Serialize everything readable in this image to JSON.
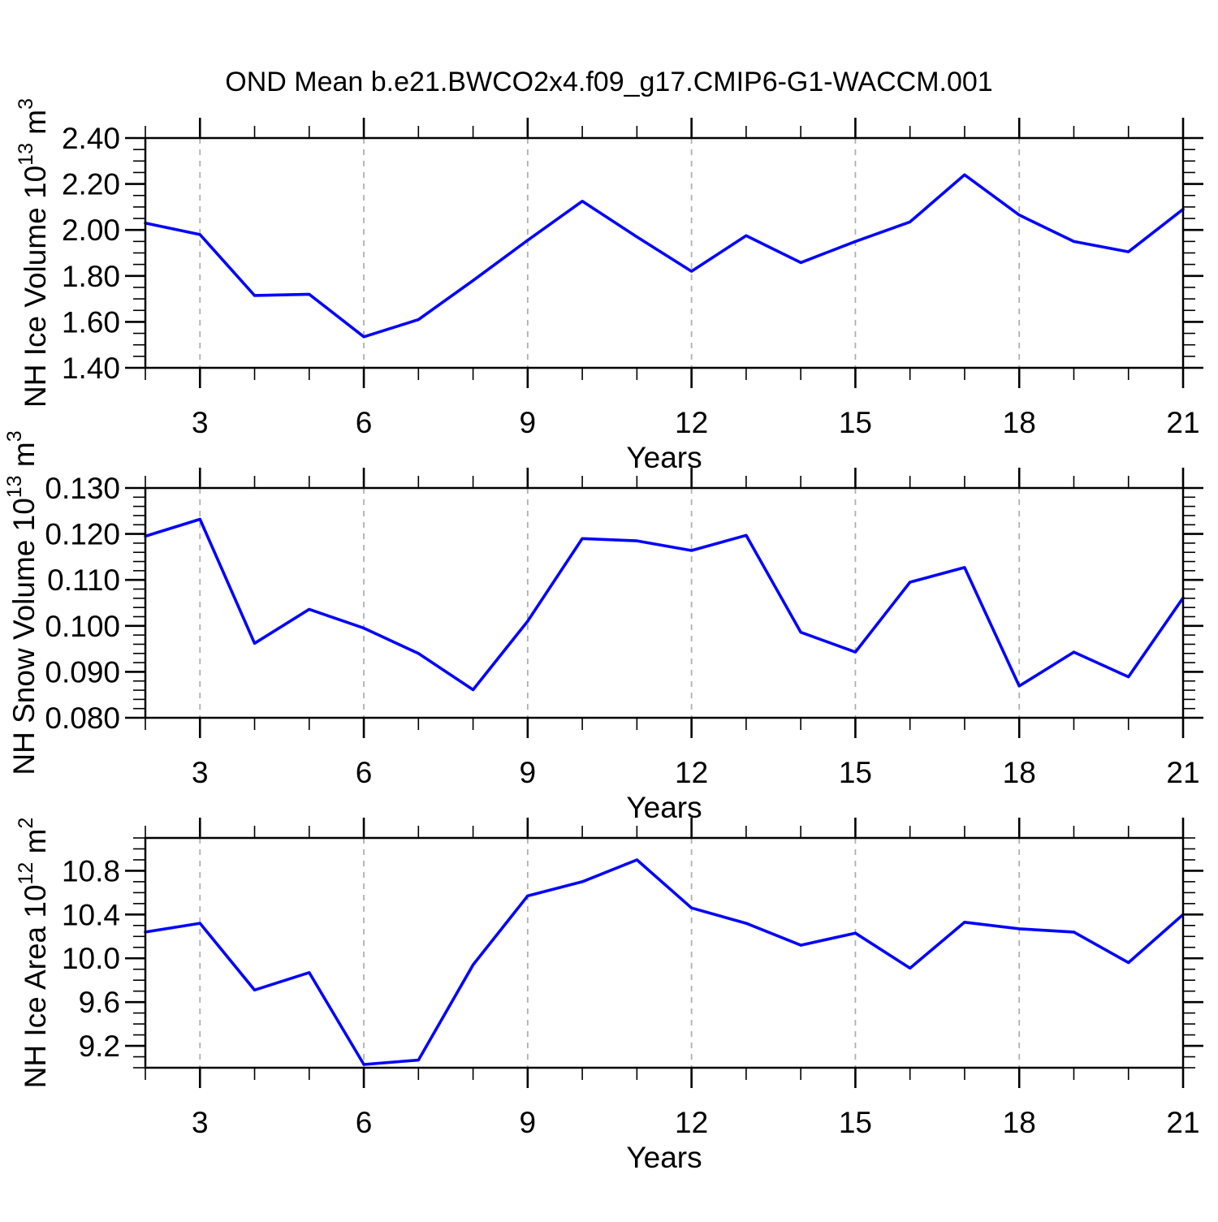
{
  "title": "OND Mean b.e21.BWCO2x4.f09_g17.CMIP6-G1-WACCM.001",
  "colors": {
    "line": "#0000ff",
    "grid": "#b0b0b0",
    "axis": "#000000",
    "background": "#ffffff"
  },
  "x_axis": {
    "label": "Years",
    "min": 2,
    "max": 21,
    "major_ticks": [
      3,
      6,
      9,
      12,
      15,
      18,
      21
    ],
    "minor_step": 1,
    "gridline_years": [
      3,
      6,
      9,
      12,
      15,
      18
    ]
  },
  "chart_data": [
    {
      "type": "line",
      "name": "nh-ice-volume",
      "ylabel": "NH Ice Volume 10^13 m^3",
      "ylabel_parts": [
        {
          "t": "NH Ice Volume 10"
        },
        {
          "t": "13",
          "sup": true
        },
        {
          "t": " m"
        },
        {
          "t": "3",
          "sup": true
        }
      ],
      "ylim": [
        1.4,
        2.4
      ],
      "ytick_values": [
        1.4,
        1.6,
        1.8,
        2.0,
        2.2,
        2.4
      ],
      "ytick_labels": [
        "1.40",
        "1.60",
        "1.80",
        "2.00",
        "2.20",
        "2.40"
      ],
      "y_minor_step": 0.05,
      "x": [
        2,
        3,
        4,
        5,
        6,
        7,
        8,
        9,
        10,
        11,
        12,
        13,
        14,
        15,
        16,
        17,
        18,
        19,
        20,
        21
      ],
      "values": [
        2.03,
        1.98,
        1.715,
        1.72,
        1.535,
        1.61,
        1.78,
        1.955,
        2.125,
        1.97,
        1.82,
        1.975,
        1.858,
        1.95,
        2.035,
        2.24,
        2.065,
        1.95,
        1.905,
        2.09
      ]
    },
    {
      "type": "line",
      "name": "nh-snow-volume",
      "ylabel": "NH Snow Volume 10^13 m^3",
      "ylabel_parts": [
        {
          "t": "NH Snow Volume 10"
        },
        {
          "t": "13",
          "sup": true
        },
        {
          "t": " m"
        },
        {
          "t": "3",
          "sup": true
        }
      ],
      "ylim": [
        0.08,
        0.13
      ],
      "ytick_values": [
        0.08,
        0.09,
        0.1,
        0.11,
        0.12,
        0.13
      ],
      "ytick_labels": [
        "0.080",
        "0.090",
        "0.100",
        "0.110",
        "0.120",
        "0.130"
      ],
      "y_minor_step": 0.002,
      "x": [
        2,
        3,
        4,
        5,
        6,
        7,
        8,
        9,
        10,
        11,
        12,
        13,
        14,
        15,
        16,
        17,
        18,
        19,
        20,
        21
      ],
      "values": [
        0.1195,
        0.1232,
        0.0962,
        0.1036,
        0.0995,
        0.094,
        0.0861,
        0.101,
        0.119,
        0.1185,
        0.1164,
        0.1197,
        0.0986,
        0.0943,
        0.1095,
        0.1127,
        0.0869,
        0.0943,
        0.0889,
        0.1061
      ]
    },
    {
      "type": "line",
      "name": "nh-ice-area",
      "ylabel": "NH Ice Area 10^12 m^2",
      "ylabel_parts": [
        {
          "t": "NH Ice Area 10"
        },
        {
          "t": "12",
          "sup": true
        },
        {
          "t": " m"
        },
        {
          "t": "2",
          "sup": true
        }
      ],
      "ylim": [
        9.0,
        11.1
      ],
      "ytick_values": [
        9.2,
        9.6,
        10.0,
        10.4,
        10.8
      ],
      "ytick_labels": [
        "9.2",
        "9.6",
        "10.0",
        "10.4",
        "10.8"
      ],
      "y_minor_step": 0.1,
      "x": [
        2,
        3,
        4,
        5,
        6,
        7,
        8,
        9,
        10,
        11,
        12,
        13,
        14,
        15,
        16,
        17,
        18,
        19,
        20,
        21
      ],
      "values": [
        10.24,
        10.32,
        9.71,
        9.87,
        9.03,
        9.07,
        9.94,
        10.57,
        10.7,
        10.9,
        10.46,
        10.32,
        10.12,
        10.23,
        9.91,
        10.33,
        10.27,
        10.24,
        9.96,
        10.4
      ]
    }
  ]
}
